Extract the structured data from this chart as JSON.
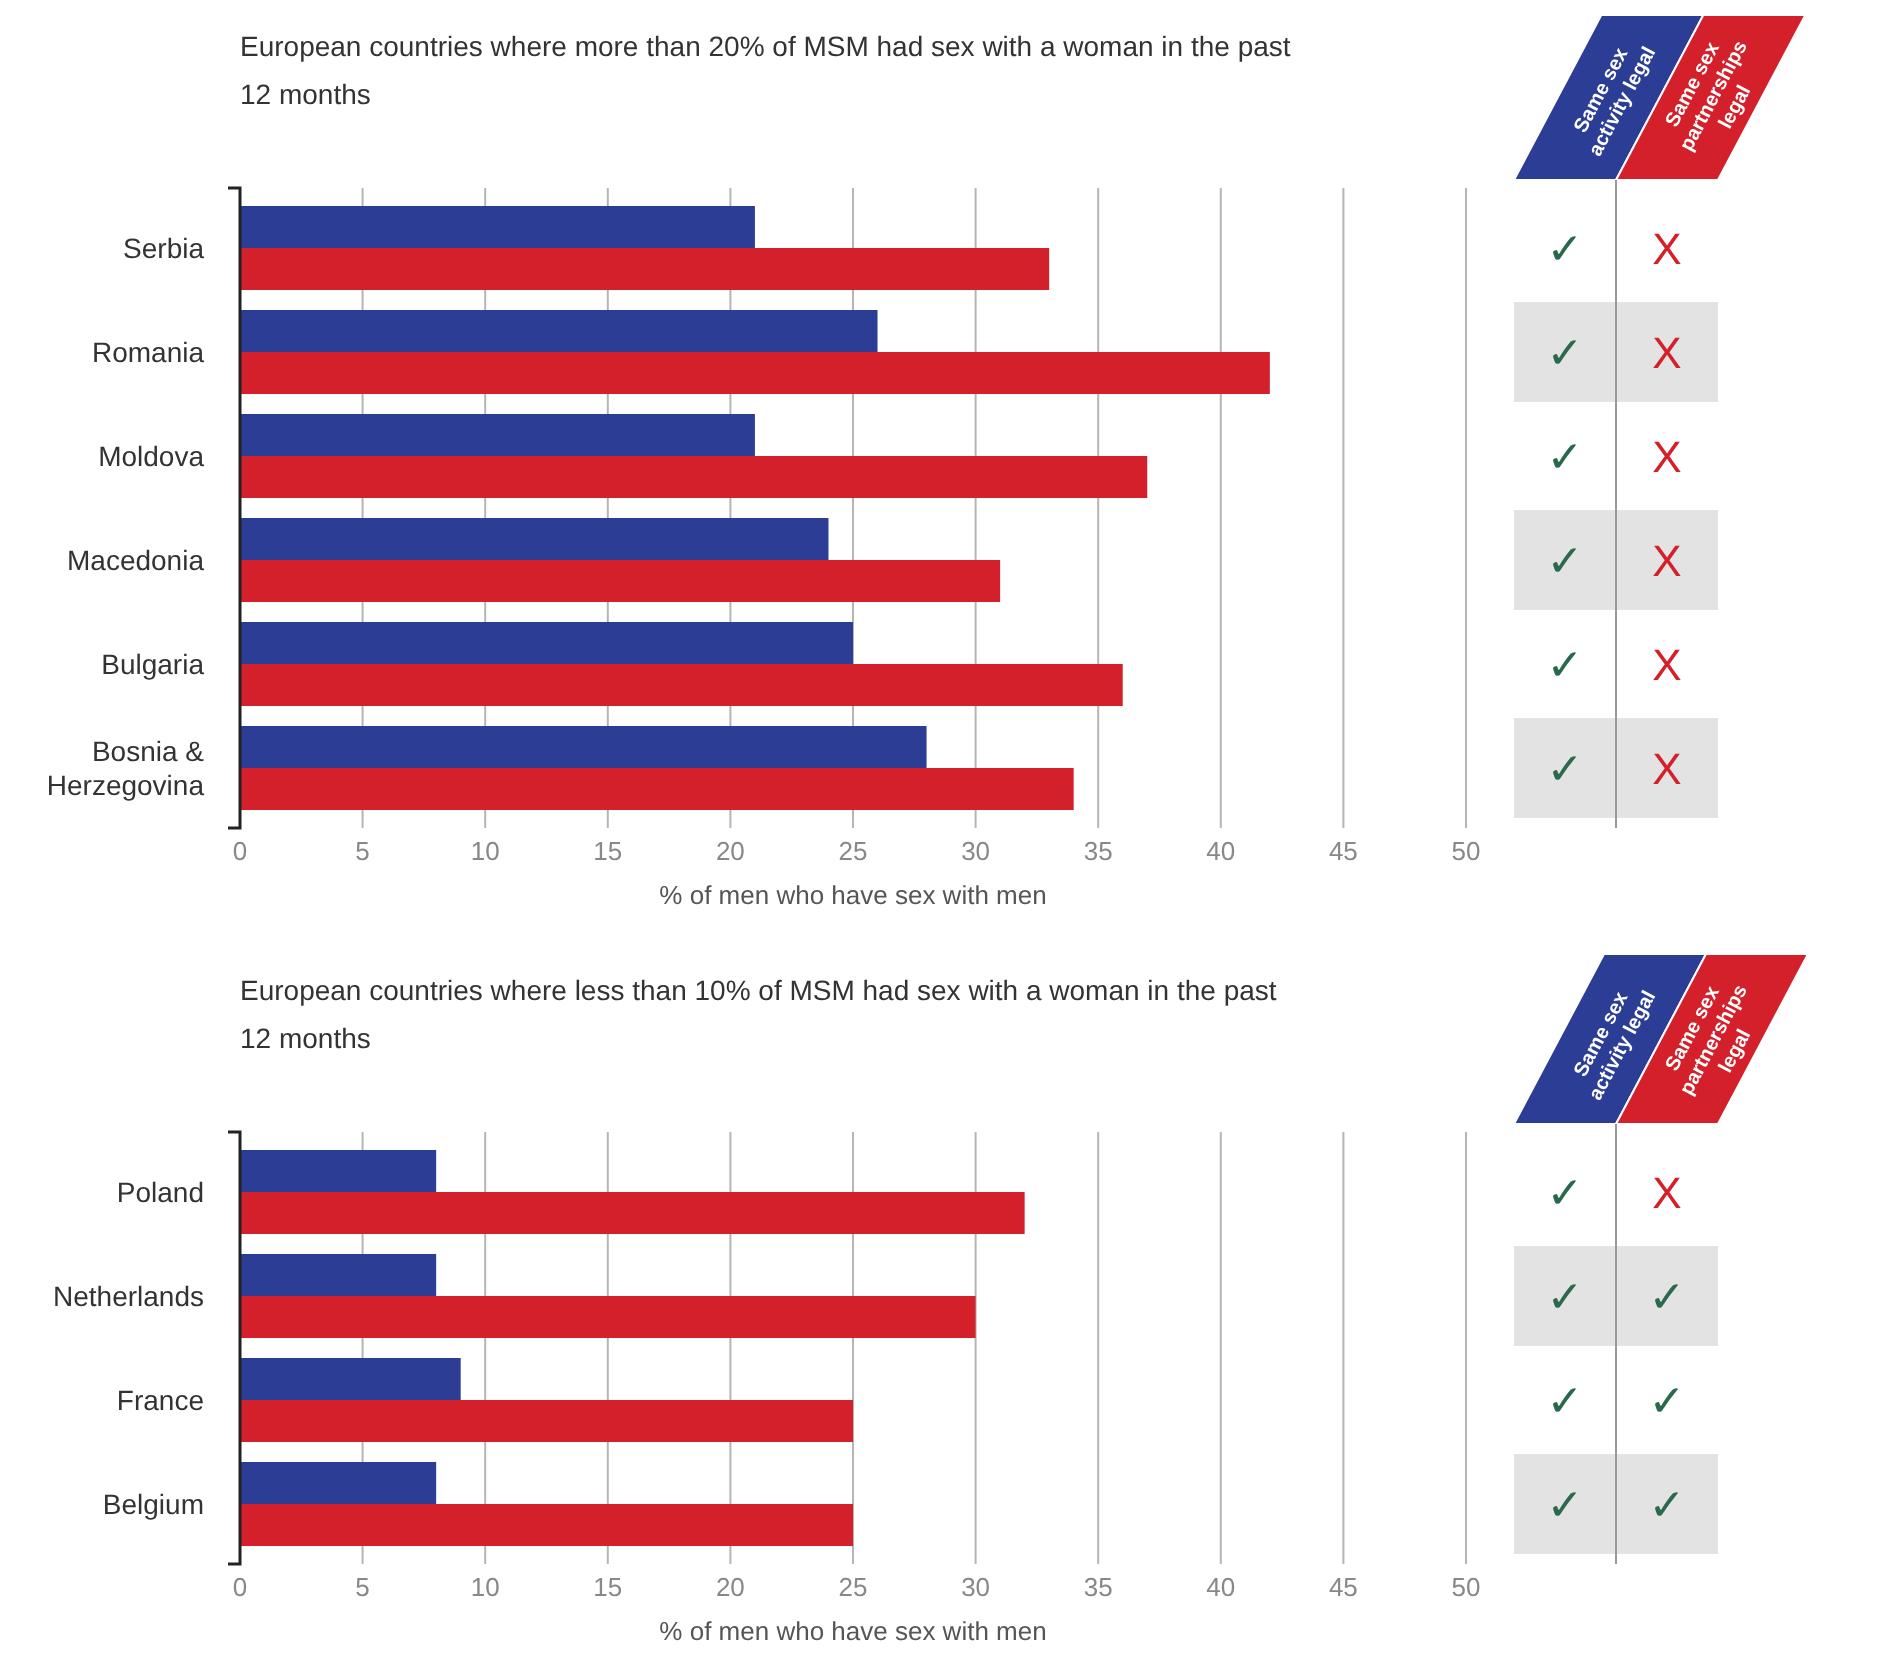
{
  "chart_data": [
    {
      "type": "bar",
      "orientation": "horizontal",
      "title": "European countries where more than 20% of MSM had sex with a woman in the past 12 months",
      "xlabel": "% of men who have sex with men",
      "categories": [
        "Serbia",
        "Romania",
        "Moldova",
        "Macedonia",
        "Bulgaria",
        "Bosnia & Herzegovina"
      ],
      "series": [
        {
          "color": "#2b3d94",
          "values": [
            21,
            26,
            21,
            24,
            25,
            28
          ]
        },
        {
          "color": "#d3202a",
          "values": [
            33,
            42,
            37,
            31,
            36,
            34
          ]
        }
      ],
      "xlim": [
        0,
        50
      ],
      "xticks": [
        0,
        5,
        10,
        15,
        20,
        25,
        30,
        35,
        40,
        45,
        50
      ],
      "grid": "x",
      "annotations": [
        "Same sex activity legal",
        "Same sex partnerships legal",
        "✓",
        "X",
        "✓",
        "X",
        "✓",
        "X",
        "✓",
        "X",
        "✓",
        "X",
        "✓",
        "X"
      ]
    },
    {
      "type": "bar",
      "orientation": "horizontal",
      "title": "European countries where less than 10% of  MSM had sex with a woman in the past 12 months",
      "xlabel": "% of men who have sex with men",
      "categories": [
        "Poland",
        "Netherlands",
        "France",
        "Belgium"
      ],
      "series": [
        {
          "color": "#2b3d94",
          "values": [
            8,
            8,
            9,
            8
          ]
        },
        {
          "color": "#d3202a",
          "values": [
            32,
            30,
            25,
            25
          ]
        }
      ],
      "xlim": [
        0,
        50
      ],
      "xticks": [
        0,
        5,
        10,
        15,
        20,
        25,
        30,
        35,
        40,
        45,
        50
      ],
      "grid": "x",
      "annotations": [
        "Same sex activity legal",
        "Same sex partnerships legal",
        "✓",
        "X",
        "✓",
        "✓",
        "✓",
        "✓",
        "✓",
        "✓"
      ]
    }
  ]
}
